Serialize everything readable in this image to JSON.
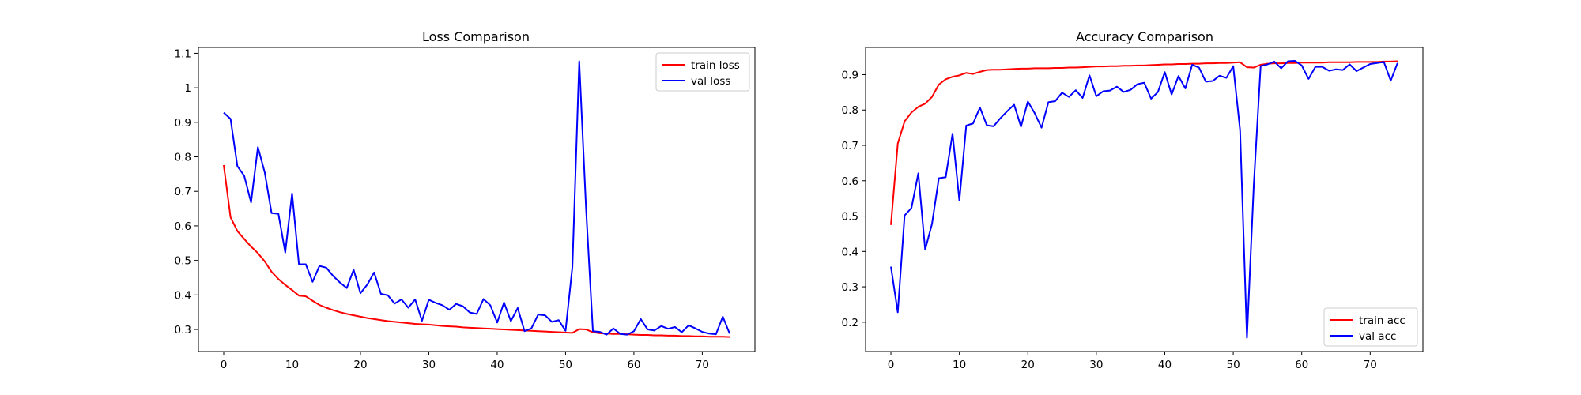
{
  "colors": {
    "train": "#ff0000",
    "val": "#0000ff"
  },
  "chart_data": [
    {
      "type": "line",
      "title": "Loss Comparison",
      "xlabel": "",
      "ylabel": "",
      "xlim": [
        -3.7,
        77.7
      ],
      "ylim": [
        0.236,
        1.117
      ],
      "xticks": [
        0,
        10,
        20,
        30,
        40,
        50,
        60,
        70
      ],
      "yticks": [
        0.3,
        0.4,
        0.5,
        0.6,
        0.7,
        0.8,
        0.9,
        1.0,
        1.1
      ],
      "legend_position": "top-right",
      "series": [
        {
          "name": "train loss",
          "color": "#ff0000",
          "values": [
            0.776,
            0.625,
            0.585,
            0.562,
            0.54,
            0.521,
            0.497,
            0.467,
            0.446,
            0.429,
            0.414,
            0.398,
            0.396,
            0.383,
            0.371,
            0.363,
            0.356,
            0.35,
            0.345,
            0.341,
            0.337,
            0.333,
            0.33,
            0.327,
            0.324,
            0.322,
            0.32,
            0.318,
            0.316,
            0.315,
            0.314,
            0.312,
            0.31,
            0.309,
            0.308,
            0.306,
            0.305,
            0.304,
            0.303,
            0.302,
            0.301,
            0.3,
            0.299,
            0.298,
            0.297,
            0.296,
            0.295,
            0.294,
            0.293,
            0.292,
            0.291,
            0.29,
            0.301,
            0.3,
            0.292,
            0.289,
            0.288,
            0.287,
            0.287,
            0.286,
            0.285,
            0.284,
            0.284,
            0.283,
            0.283,
            0.282,
            0.282,
            0.281,
            0.281,
            0.28,
            0.28,
            0.279,
            0.279,
            0.279,
            0.278
          ]
        },
        {
          "name": "val loss",
          "color": "#0000ff",
          "values": [
            0.928,
            0.91,
            0.773,
            0.745,
            0.668,
            0.828,
            0.755,
            0.637,
            0.635,
            0.523,
            0.694,
            0.489,
            0.489,
            0.438,
            0.484,
            0.479,
            0.455,
            0.436,
            0.42,
            0.473,
            0.405,
            0.43,
            0.465,
            0.403,
            0.399,
            0.375,
            0.387,
            0.363,
            0.387,
            0.325,
            0.386,
            0.377,
            0.37,
            0.357,
            0.374,
            0.367,
            0.349,
            0.345,
            0.388,
            0.37,
            0.32,
            0.378,
            0.324,
            0.362,
            0.295,
            0.303,
            0.343,
            0.341,
            0.322,
            0.327,
            0.296,
            0.481,
            1.077,
            0.65,
            0.295,
            0.293,
            0.285,
            0.303,
            0.287,
            0.285,
            0.295,
            0.33,
            0.3,
            0.297,
            0.31,
            0.302,
            0.307,
            0.292,
            0.312,
            0.303,
            0.293,
            0.288,
            0.286,
            0.337,
            0.288
          ]
        }
      ]
    },
    {
      "type": "line",
      "title": "Accuracy Comparison",
      "xlabel": "",
      "ylabel": "",
      "xlim": [
        -3.7,
        77.7
      ],
      "ylim": [
        0.117,
        0.977
      ],
      "xticks": [
        0,
        10,
        20,
        30,
        40,
        50,
        60,
        70
      ],
      "yticks": [
        0.2,
        0.3,
        0.4,
        0.5,
        0.6,
        0.7,
        0.8,
        0.9
      ],
      "legend_position": "bottom-right",
      "series": [
        {
          "name": "train acc",
          "color": "#ff0000",
          "values": [
            0.475,
            0.705,
            0.768,
            0.793,
            0.809,
            0.818,
            0.837,
            0.872,
            0.887,
            0.894,
            0.898,
            0.905,
            0.902,
            0.908,
            0.913,
            0.914,
            0.914,
            0.915,
            0.916,
            0.917,
            0.917,
            0.918,
            0.918,
            0.918,
            0.919,
            0.919,
            0.92,
            0.92,
            0.921,
            0.922,
            0.923,
            0.923,
            0.924,
            0.924,
            0.925,
            0.925,
            0.926,
            0.926,
            0.927,
            0.928,
            0.929,
            0.929,
            0.93,
            0.93,
            0.931,
            0.931,
            0.932,
            0.932,
            0.933,
            0.933,
            0.934,
            0.935,
            0.921,
            0.92,
            0.928,
            0.931,
            0.932,
            0.932,
            0.933,
            0.933,
            0.934,
            0.934,
            0.934,
            0.934,
            0.935,
            0.935,
            0.935,
            0.935,
            0.936,
            0.936,
            0.936,
            0.936,
            0.937,
            0.937,
            0.938
          ]
        },
        {
          "name": "val acc",
          "color": "#0000ff",
          "values": [
            0.357,
            0.228,
            0.502,
            0.523,
            0.621,
            0.405,
            0.478,
            0.607,
            0.61,
            0.733,
            0.544,
            0.756,
            0.762,
            0.807,
            0.757,
            0.754,
            0.777,
            0.797,
            0.815,
            0.753,
            0.824,
            0.791,
            0.75,
            0.822,
            0.825,
            0.849,
            0.837,
            0.856,
            0.834,
            0.898,
            0.839,
            0.853,
            0.855,
            0.866,
            0.851,
            0.857,
            0.873,
            0.877,
            0.832,
            0.851,
            0.907,
            0.844,
            0.896,
            0.861,
            0.928,
            0.92,
            0.88,
            0.882,
            0.897,
            0.891,
            0.924,
            0.743,
            0.156,
            0.588,
            0.924,
            0.929,
            0.937,
            0.918,
            0.938,
            0.939,
            0.926,
            0.888,
            0.922,
            0.922,
            0.911,
            0.915,
            0.913,
            0.929,
            0.91,
            0.92,
            0.93,
            0.933,
            0.936,
            0.883,
            0.933
          ]
        }
      ]
    }
  ]
}
